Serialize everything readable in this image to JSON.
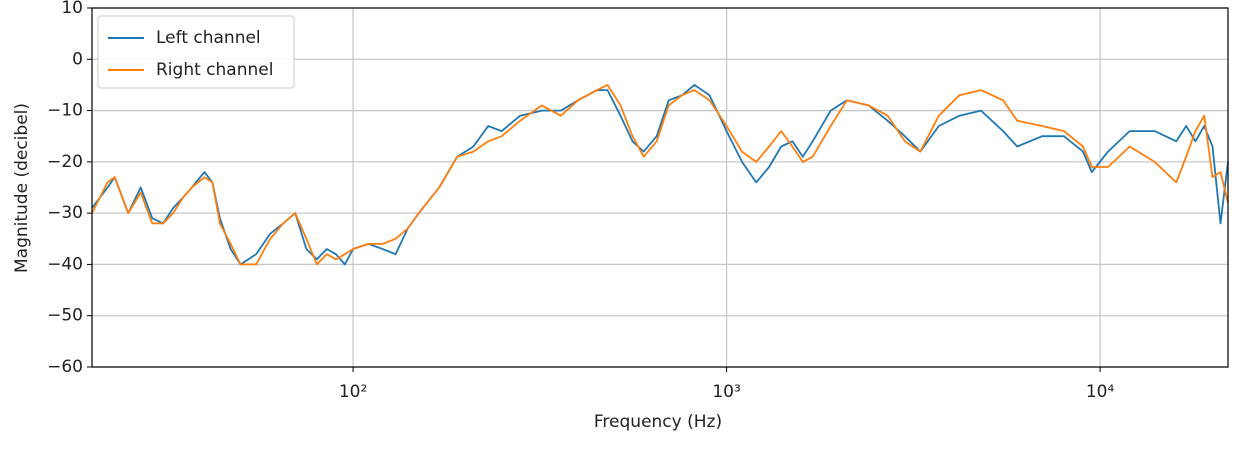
{
  "chart_data": {
    "type": "line",
    "xlabel": "Frequency (Hz)",
    "ylabel": "Magnitude (decibel)",
    "x_log": true,
    "grid": true,
    "legend": "upper left",
    "xlim": [
      20,
      22000
    ],
    "ylim": [
      -60,
      10
    ],
    "xticks": [
      {
        "value": 100,
        "label": "10²"
      },
      {
        "value": 1000,
        "label": "10³"
      },
      {
        "value": 10000,
        "label": "10⁴"
      }
    ],
    "yticks": [
      10,
      0,
      {
        "value": -10,
        "label": "−10"
      },
      {
        "value": -20,
        "label": "−20"
      },
      {
        "value": -30,
        "label": "−30"
      },
      {
        "value": -40,
        "label": "−40"
      },
      {
        "value": -50,
        "label": "−50"
      },
      {
        "value": -60,
        "label": "−60"
      }
    ],
    "x": [
      20,
      22,
      23,
      25,
      27,
      29,
      31,
      33,
      35,
      37,
      40,
      42,
      44,
      47,
      50,
      55,
      60,
      65,
      70,
      75,
      80,
      85,
      90,
      95,
      100,
      110,
      120,
      130,
      140,
      150,
      170,
      190,
      210,
      230,
      250,
      280,
      320,
      360,
      400,
      450,
      480,
      520,
      560,
      600,
      650,
      700,
      760,
      820,
      900,
      1000,
      1100,
      1200,
      1300,
      1400,
      1500,
      1600,
      1700,
      1900,
      2100,
      2400,
      2700,
      3000,
      3300,
      3700,
      4200,
      4800,
      5500,
      6000,
      7000,
      8000,
      9000,
      9500,
      10500,
      12000,
      14000,
      16000,
      17000,
      18000,
      19000,
      20000,
      21000,
      22000
    ],
    "series": [
      {
        "name": "Left channel",
        "color": "#1f77b4",
        "values": [
          -29,
          -25,
          -23,
          -30,
          -25,
          -31,
          -32,
          -29,
          -27,
          -25,
          -22,
          -24,
          -31,
          -37,
          -40,
          -38,
          -34,
          -32,
          -30,
          -37,
          -39,
          -37,
          -38,
          -40,
          -37,
          -36,
          -37,
          -38,
          -33,
          -30,
          -25,
          -19,
          -17,
          -13,
          -14,
          -11,
          -10,
          -10,
          -8,
          -6,
          -6,
          -11,
          -16,
          -18,
          -15,
          -8,
          -7,
          -5,
          -7,
          -14,
          -20,
          -24,
          -21,
          -17,
          -16,
          -19,
          -16,
          -10,
          -8,
          -9,
          -12,
          -15,
          -18,
          -13,
          -11,
          -10,
          -14,
          -17,
          -15,
          -15,
          -18,
          -22,
          -18,
          -14,
          -14,
          -16,
          -13,
          -16,
          -13,
          -17,
          -32,
          -20
        ]
      },
      {
        "name": "Right channel",
        "color": "#ff7f0e",
        "values": [
          -30,
          -24,
          -23,
          -30,
          -26,
          -32,
          -32,
          -30,
          -27,
          -25,
          -23,
          -24,
          -32,
          -36,
          -40,
          -40,
          -35,
          -32,
          -30,
          -35,
          -40,
          -38,
          -39,
          -38,
          -37,
          -36,
          -36,
          -35,
          -33,
          -30,
          -25,
          -19,
          -18,
          -16,
          -15,
          -12,
          -9,
          -11,
          -8,
          -6,
          -5,
          -9,
          -15,
          -19,
          -16,
          -9,
          -7,
          -6,
          -8,
          -13,
          -18,
          -20,
          -17,
          -14,
          -17,
          -20,
          -19,
          -13,
          -8,
          -9,
          -11,
          -16,
          -18,
          -11,
          -7,
          -6,
          -8,
          -12,
          -13,
          -14,
          -17,
          -21,
          -21,
          -17,
          -20,
          -24,
          -19,
          -14,
          -11,
          -23,
          -22,
          -28
        ]
      }
    ]
  }
}
